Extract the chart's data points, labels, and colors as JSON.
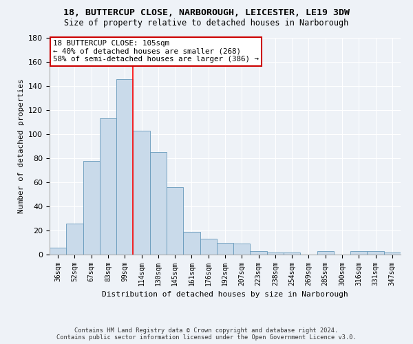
{
  "title1": "18, BUTTERCUP CLOSE, NARBOROUGH, LEICESTER, LE19 3DW",
  "title2": "Size of property relative to detached houses in Narborough",
  "xlabel": "Distribution of detached houses by size in Narborough",
  "ylabel": "Number of detached properties",
  "categories": [
    "36sqm",
    "52sqm",
    "67sqm",
    "83sqm",
    "99sqm",
    "114sqm",
    "130sqm",
    "145sqm",
    "161sqm",
    "176sqm",
    "192sqm",
    "207sqm",
    "223sqm",
    "238sqm",
    "254sqm",
    "269sqm",
    "285sqm",
    "300sqm",
    "316sqm",
    "331sqm",
    "347sqm"
  ],
  "values": [
    6,
    26,
    78,
    113,
    146,
    103,
    85,
    56,
    19,
    13,
    10,
    9,
    3,
    2,
    2,
    0,
    3,
    0,
    3,
    3,
    2
  ],
  "bar_color": "#c9daea",
  "bar_edge_color": "#6699bb",
  "ylim": [
    0,
    180
  ],
  "yticks": [
    0,
    20,
    40,
    60,
    80,
    100,
    120,
    140,
    160,
    180
  ],
  "red_line_index": 4.5,
  "annotation_text1": "18 BUTTERCUP CLOSE: 105sqm",
  "annotation_text2": "← 40% of detached houses are smaller (268)",
  "annotation_text3": "58% of semi-detached houses are larger (386) →",
  "annotation_box_color": "#ffffff",
  "annotation_box_edge": "#cc0000",
  "footer1": "Contains HM Land Registry data © Crown copyright and database right 2024.",
  "footer2": "Contains public sector information licensed under the Open Government Licence v3.0.",
  "background_color": "#eef2f7",
  "grid_color": "#ffffff"
}
